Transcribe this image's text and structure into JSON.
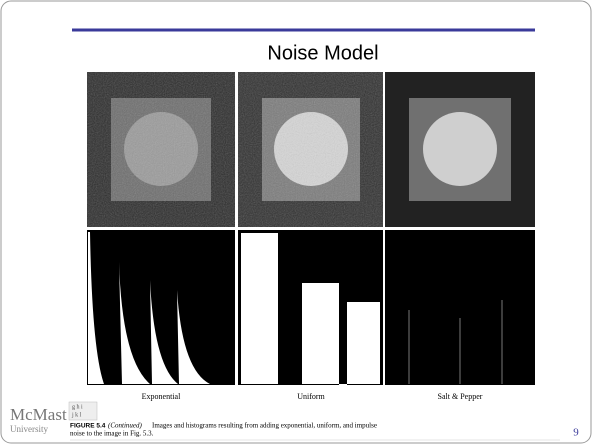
{
  "title": "Noise Model",
  "panels": [
    {
      "label": "Exponential"
    },
    {
      "label": "Uniform"
    },
    {
      "label": "Salt & Pepper"
    }
  ],
  "figure_grid": [
    "g h i",
    "j k l"
  ],
  "caption": {
    "number": "FIGURE 5.4",
    "note": "(Continued)",
    "text_line1": "Images and histograms resulting from adding exponential, uniform, and impulse",
    "text_line2": "noise to the image in Fig. 5.3."
  },
  "logo": {
    "name": "McMast",
    "sub": "University"
  },
  "page_number": "9"
}
